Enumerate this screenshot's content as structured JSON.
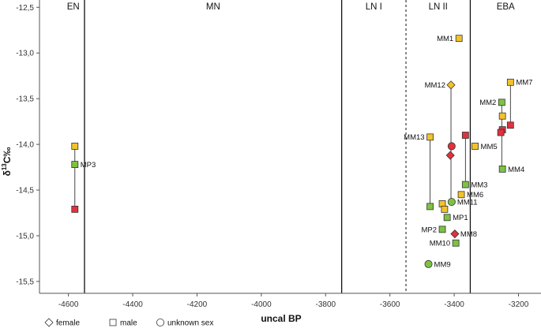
{
  "chart_data": {
    "type": "scatter",
    "title": "",
    "xlabel": "uncal BP",
    "ylabel_main": "δ",
    "ylabel_sup": "13",
    "ylabel_rest": "C‰",
    "xlim": [
      -4690,
      -3130
    ],
    "ylim": [
      -15.63,
      -12.42
    ],
    "x_ticks": [
      {
        "value": -4600,
        "label": "-4600"
      },
      {
        "value": -4400,
        "label": "-4400"
      },
      {
        "value": -4200,
        "label": "-4200"
      },
      {
        "value": -4000,
        "label": "-4000"
      },
      {
        "value": -3800,
        "label": "-3800"
      },
      {
        "value": -3600,
        "label": "-3600"
      },
      {
        "value": -3400,
        "label": "-3400"
      },
      {
        "value": -3200,
        "label": "-3200"
      }
    ],
    "y_ticks": [
      {
        "value": -12.5,
        "label": "-12,5"
      },
      {
        "value": -13.0,
        "label": "-13,0"
      },
      {
        "value": -13.5,
        "label": "-13,5"
      },
      {
        "value": -14.0,
        "label": "-14,0"
      },
      {
        "value": -14.5,
        "label": "-14,5"
      },
      {
        "value": -15.0,
        "label": "-15,0"
      },
      {
        "value": -15.5,
        "label": "-15,5"
      }
    ],
    "period_boundaries": [
      {
        "x": -4550,
        "style": "solid"
      },
      {
        "x": -3750,
        "style": "solid"
      },
      {
        "x": -3550,
        "style": "dashed"
      },
      {
        "x": -3350,
        "style": "solid"
      }
    ],
    "periods": [
      {
        "label": "EN",
        "x": -4585
      },
      {
        "label": "MN",
        "x": -4150
      },
      {
        "label": "LN I",
        "x": -3650
      },
      {
        "label": "LN II",
        "x": -3450
      },
      {
        "label": "EBA",
        "x": -3240
      }
    ],
    "colors": {
      "yellow": "#f2c32a",
      "green": "#7ec242",
      "red": "#e0323f",
      "stroke": "#333333"
    },
    "series": [
      {
        "name": "female",
        "shape": "diamond"
      },
      {
        "name": "male",
        "shape": "square"
      },
      {
        "name": "unknown sex",
        "shape": "circle"
      }
    ],
    "points": [
      {
        "x": -4580,
        "y": -14.02,
        "shape": "square",
        "color": "yellow",
        "label": ""
      },
      {
        "x": -4580,
        "y": -14.22,
        "shape": "square",
        "color": "green",
        "label": "MP3"
      },
      {
        "x": -4580,
        "y": -14.71,
        "shape": "square",
        "color": "red",
        "label": ""
      },
      {
        "x": -3385,
        "y": -12.84,
        "shape": "square",
        "color": "yellow",
        "label": "MM1"
      },
      {
        "x": -3225,
        "y": -13.32,
        "shape": "square",
        "color": "yellow",
        "label": "MM7"
      },
      {
        "x": -3410,
        "y": -13.35,
        "shape": "diamond",
        "color": "yellow",
        "label": "MM12"
      },
      {
        "x": -3252,
        "y": -13.54,
        "shape": "square",
        "color": "green",
        "label": "MM2"
      },
      {
        "x": -3250,
        "y": -13.69,
        "shape": "square",
        "color": "yellow",
        "label": ""
      },
      {
        "x": -3225,
        "y": -13.79,
        "shape": "square",
        "color": "red",
        "label": ""
      },
      {
        "x": -3250,
        "y": -13.84,
        "shape": "square",
        "color": "red",
        "label": ""
      },
      {
        "x": -3255,
        "y": -13.87,
        "shape": "square",
        "color": "red",
        "label": ""
      },
      {
        "x": -3365,
        "y": -13.9,
        "shape": "square",
        "color": "red",
        "label": ""
      },
      {
        "x": -3475,
        "y": -13.92,
        "shape": "square",
        "color": "yellow",
        "label": "MM13"
      },
      {
        "x": -3408,
        "y": -14.02,
        "shape": "circle",
        "color": "red",
        "label": ""
      },
      {
        "x": -3335,
        "y": -14.02,
        "shape": "square",
        "color": "yellow",
        "label": "MM5"
      },
      {
        "x": -3412,
        "y": -14.12,
        "shape": "diamond",
        "color": "red",
        "label": ""
      },
      {
        "x": -3250,
        "y": -14.27,
        "shape": "square",
        "color": "green",
        "label": "MM4"
      },
      {
        "x": -3365,
        "y": -14.44,
        "shape": "square",
        "color": "green",
        "label": "MM3"
      },
      {
        "x": -3378,
        "y": -14.55,
        "shape": "square",
        "color": "yellow",
        "label": "MM6"
      },
      {
        "x": -3408,
        "y": -14.63,
        "shape": "circle",
        "color": "green",
        "label": "MM11"
      },
      {
        "x": -3437,
        "y": -14.65,
        "shape": "square",
        "color": "yellow",
        "label": ""
      },
      {
        "x": -3475,
        "y": -14.68,
        "shape": "square",
        "color": "green",
        "label": ""
      },
      {
        "x": -3430,
        "y": -14.71,
        "shape": "square",
        "color": "yellow",
        "label": ""
      },
      {
        "x": -3422,
        "y": -14.8,
        "shape": "square",
        "color": "green",
        "label": "MP1"
      },
      {
        "x": -3437,
        "y": -14.93,
        "shape": "square",
        "color": "green",
        "label": "MP2"
      },
      {
        "x": -3398,
        "y": -14.98,
        "shape": "diamond",
        "color": "red",
        "label": "MM8"
      },
      {
        "x": -3395,
        "y": -15.08,
        "shape": "square",
        "color": "green",
        "label": "MM10"
      },
      {
        "x": -3480,
        "y": -15.31,
        "shape": "circle",
        "color": "green",
        "label": "MM9"
      }
    ],
    "connectors": [
      {
        "x": -4580,
        "y1": -14.02,
        "y2": -14.71
      },
      {
        "x": -3475,
        "y1": -13.92,
        "y2": -14.68
      },
      {
        "x": -3410,
        "y1": -13.35,
        "y2": -14.63
      },
      {
        "x": -3365,
        "y1": -13.9,
        "y2": -14.44
      },
      {
        "x": -3252,
        "y1": -13.54,
        "y2": -14.27
      },
      {
        "x": -3225,
        "y1": -13.32,
        "y2": -13.79
      }
    ],
    "legend": [
      {
        "shape": "diamond",
        "label": "female"
      },
      {
        "shape": "square",
        "label": "male"
      },
      {
        "shape": "circle",
        "label": "unknown sex"
      }
    ]
  }
}
